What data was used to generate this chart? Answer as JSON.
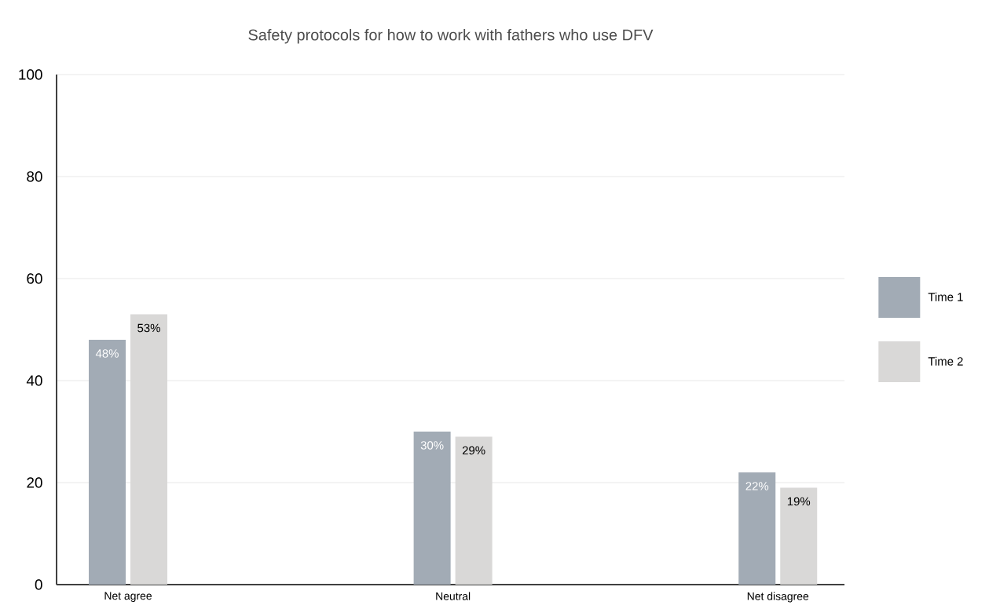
{
  "chart_data": {
    "type": "bar",
    "title": "Safety protocols for how to work with fathers who use DFV",
    "categories": [
      "Net agree",
      "Neutral",
      "Net disagree"
    ],
    "series": [
      {
        "name": "Time 1",
        "color": "#a2abb5",
        "values": [
          48,
          30,
          22
        ],
        "value_labels": [
          "48%",
          "30%",
          "22%"
        ]
      },
      {
        "name": "Time 2",
        "color": "#d9d8d7",
        "values": [
          53,
          29,
          19
        ],
        "value_labels": [
          "53%",
          "29%",
          "19%"
        ]
      }
    ],
    "ylim": [
      0,
      100
    ],
    "yticks": [
      0,
      20,
      40,
      60,
      80,
      100
    ],
    "grid": "y",
    "legend": "right"
  }
}
